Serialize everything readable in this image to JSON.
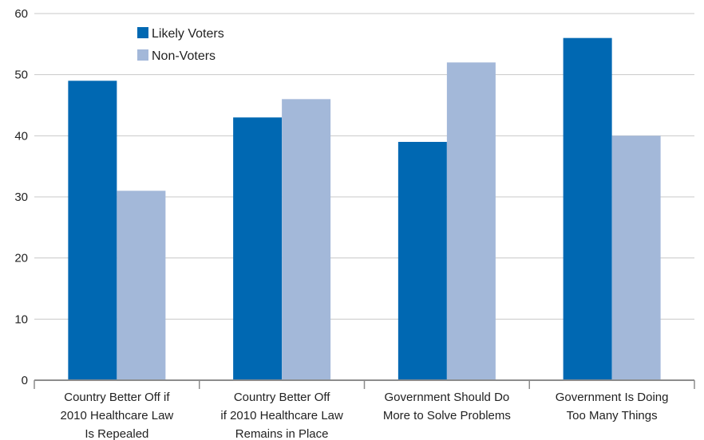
{
  "chart_data": {
    "type": "bar",
    "title": "",
    "xlabel": "",
    "ylabel": "",
    "ylim": [
      0,
      60
    ],
    "yticks": [
      0,
      10,
      20,
      30,
      40,
      50,
      60
    ],
    "grid": true,
    "legend_position": "top-left",
    "categories": [
      [
        "Country Better Off if",
        "2010 Healthcare Law",
        "Is Repealed"
      ],
      [
        "Country Better Off",
        "if 2010 Healthcare Law",
        "Remains in Place"
      ],
      [
        "Government Should Do",
        "More to Solve Problems"
      ],
      [
        "Government Is Doing",
        "Too Many Things"
      ]
    ],
    "series": [
      {
        "name": "Likely Voters",
        "color": "#0068b2",
        "values": [
          49,
          43,
          39,
          56
        ]
      },
      {
        "name": "Non-Voters",
        "color": "#a3b8d9",
        "values": [
          31,
          46,
          52,
          40
        ]
      }
    ]
  }
}
